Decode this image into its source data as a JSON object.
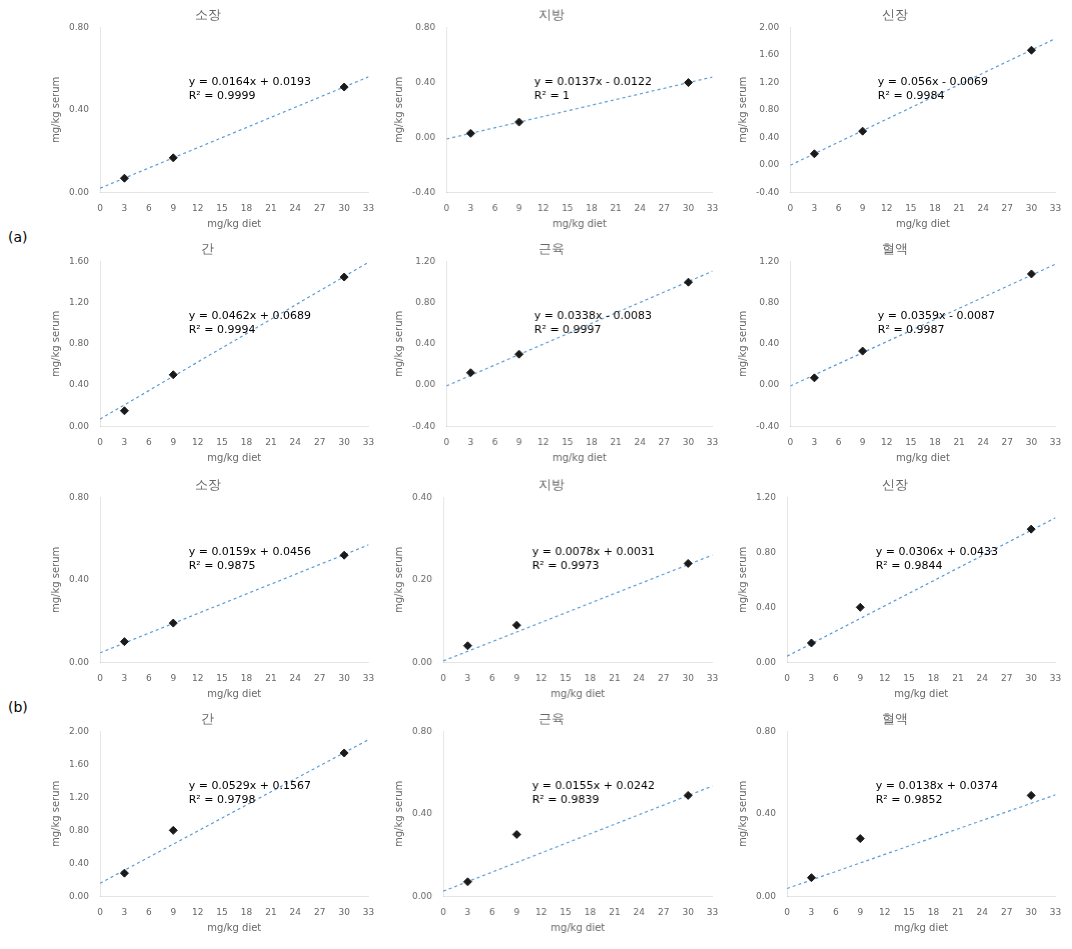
{
  "chart_data": [
    {
      "group": "(a)",
      "type": "scatter",
      "title": "소장",
      "x_label": "mg/kg diet",
      "y_label": "mg/kg serum",
      "grid": false,
      "xlim": [
        0,
        33
      ],
      "xticks": [
        0,
        3,
        6,
        9,
        12,
        15,
        18,
        21,
        24,
        27,
        30,
        33
      ],
      "ylim": [
        0,
        0.8
      ],
      "yticks": [
        {
          "value": 0,
          "label": "0.00"
        },
        {
          "value": 0.4,
          "label": "0.40"
        },
        {
          "value": 0.8,
          "label": "0.80"
        }
      ],
      "annotations": [
        "y = 0.0164x + 0.0193",
        "R² = 0.9999"
      ],
      "series": [
        {
          "type": "line",
          "color": "#5b9bd5",
          "line_style": "dashed",
          "x": [
            0,
            33
          ],
          "values": [
            0.0193,
            0.5605
          ]
        },
        {
          "type": "scatter",
          "color": "#1a1a1a",
          "marker": "diamond",
          "x": [
            3,
            9,
            30
          ],
          "values": [
            0.068,
            0.167,
            0.511
          ]
        }
      ]
    },
    {
      "group": "(a)",
      "type": "scatter",
      "title": "지방",
      "x_label": "mg/kg diet",
      "y_label": "mg/kg serum",
      "grid": false,
      "xlim": [
        0,
        33
      ],
      "xticks": [
        0,
        3,
        6,
        9,
        12,
        15,
        18,
        21,
        24,
        27,
        30,
        33
      ],
      "ylim": [
        -0.4,
        0.8
      ],
      "yticks": [
        {
          "value": -0.4,
          "label": "-0.40"
        },
        {
          "value": 0,
          "label": "0.00"
        },
        {
          "value": 0.4,
          "label": "0.40"
        },
        {
          "value": 0.8,
          "label": "0.80"
        }
      ],
      "annotations": [
        "y = 0.0137x - 0.0122",
        "R² = 1"
      ],
      "series": [
        {
          "type": "line",
          "color": "#5b9bd5",
          "line_style": "dashed",
          "x": [
            0,
            33
          ],
          "values": [
            -0.0122,
            0.4399
          ]
        },
        {
          "type": "scatter",
          "color": "#1a1a1a",
          "marker": "diamond",
          "x": [
            3,
            9,
            30
          ],
          "values": [
            0.029,
            0.111,
            0.399
          ]
        }
      ]
    },
    {
      "group": "(a)",
      "type": "scatter",
      "title": "신장",
      "x_label": "mg/kg diet",
      "y_label": "mg/kg serum",
      "grid": false,
      "xlim": [
        0,
        33
      ],
      "xticks": [
        0,
        3,
        6,
        9,
        12,
        15,
        18,
        21,
        24,
        27,
        30,
        33
      ],
      "ylim": [
        -0.4,
        2.0
      ],
      "yticks": [
        {
          "value": -0.4,
          "label": "-0.40"
        },
        {
          "value": 0,
          "label": "0.00"
        },
        {
          "value": 0.4,
          "label": "0.40"
        },
        {
          "value": 0.8,
          "label": "0.80"
        },
        {
          "value": 1.2,
          "label": "1.20"
        },
        {
          "value": 1.6,
          "label": "1.60"
        },
        {
          "value": 2.0,
          "label": "2.00"
        }
      ],
      "annotations": [
        "y = 0.056x - 0.0069",
        "R² = 0.9984"
      ],
      "series": [
        {
          "type": "line",
          "color": "#5b9bd5",
          "line_style": "dashed",
          "x": [
            0,
            33
          ],
          "values": [
            -0.0069,
            1.8411
          ]
        },
        {
          "type": "scatter",
          "color": "#1a1a1a",
          "marker": "diamond",
          "x": [
            3,
            9,
            30
          ],
          "values": [
            0.16,
            0.49,
            1.67
          ]
        }
      ]
    },
    {
      "group": "(a)",
      "type": "scatter",
      "title": "간",
      "x_label": "mg/kg diet",
      "y_label": "mg/kg serum",
      "grid": false,
      "xlim": [
        0,
        33
      ],
      "xticks": [
        0,
        3,
        6,
        9,
        12,
        15,
        18,
        21,
        24,
        27,
        30,
        33
      ],
      "ylim": [
        0,
        1.6
      ],
      "yticks": [
        {
          "value": 0,
          "label": "0.00"
        },
        {
          "value": 0.4,
          "label": "0.40"
        },
        {
          "value": 0.8,
          "label": "0.80"
        },
        {
          "value": 1.2,
          "label": "1.20"
        },
        {
          "value": 1.6,
          "label": "1.60"
        }
      ],
      "annotations": [
        "y = 0.0462x + 0.0689",
        "R² = 0.9994"
      ],
      "series": [
        {
          "type": "line",
          "color": "#5b9bd5",
          "line_style": "dashed",
          "x": [
            0,
            33
          ],
          "values": [
            0.0689,
            1.5935
          ]
        },
        {
          "type": "scatter",
          "color": "#1a1a1a",
          "marker": "diamond",
          "x": [
            3,
            9,
            30
          ],
          "values": [
            0.15,
            0.5,
            1.45
          ]
        }
      ]
    },
    {
      "group": "(a)",
      "type": "scatter",
      "title": "근육",
      "x_label": "mg/kg diet",
      "y_label": "mg/kg serum",
      "grid": false,
      "xlim": [
        0,
        33
      ],
      "xticks": [
        0,
        3,
        6,
        9,
        12,
        15,
        18,
        21,
        24,
        27,
        30,
        33
      ],
      "ylim": [
        -0.4,
        1.2
      ],
      "yticks": [
        {
          "value": -0.4,
          "label": "-0.40"
        },
        {
          "value": 0,
          "label": "0.00"
        },
        {
          "value": 0.4,
          "label": "0.40"
        },
        {
          "value": 0.8,
          "label": "0.80"
        },
        {
          "value": 1.2,
          "label": "1.20"
        }
      ],
      "annotations": [
        "y = 0.0338x - 0.0083",
        "R² = 0.9997"
      ],
      "series": [
        {
          "type": "line",
          "color": "#5b9bd5",
          "line_style": "dashed",
          "x": [
            0,
            33
          ],
          "values": [
            -0.0083,
            1.1071
          ]
        },
        {
          "type": "scatter",
          "color": "#1a1a1a",
          "marker": "diamond",
          "x": [
            3,
            9,
            30
          ],
          "values": [
            0.12,
            0.3,
            1.0
          ]
        }
      ]
    },
    {
      "group": "(a)",
      "type": "scatter",
      "title": "혈액",
      "x_label": "mg/kg diet",
      "y_label": "mg/kg serum",
      "grid": false,
      "xlim": [
        0,
        33
      ],
      "xticks": [
        0,
        3,
        6,
        9,
        12,
        15,
        18,
        21,
        24,
        27,
        30,
        33
      ],
      "ylim": [
        -0.4,
        1.2
      ],
      "yticks": [
        {
          "value": -0.4,
          "label": "-0.40"
        },
        {
          "value": 0,
          "label": "0.00"
        },
        {
          "value": 0.4,
          "label": "0.40"
        },
        {
          "value": 0.8,
          "label": "0.80"
        },
        {
          "value": 1.2,
          "label": "1.20"
        }
      ],
      "annotations": [
        "y = 0.0359x - 0.0087",
        "R² = 0.9987"
      ],
      "series": [
        {
          "type": "line",
          "color": "#5b9bd5",
          "line_style": "dashed",
          "x": [
            0,
            33
          ],
          "values": [
            -0.0087,
            1.176
          ]
        },
        {
          "type": "scatter",
          "color": "#1a1a1a",
          "marker": "diamond",
          "x": [
            3,
            9,
            30
          ],
          "values": [
            0.07,
            0.33,
            1.08
          ]
        }
      ]
    },
    {
      "group": "(b)",
      "type": "scatter",
      "title": "소장",
      "x_label": "mg/kg diet",
      "y_label": "mg/kg serum",
      "grid": false,
      "xlim": [
        0,
        33
      ],
      "xticks": [
        0,
        3,
        6,
        9,
        12,
        15,
        18,
        21,
        24,
        27,
        30,
        33
      ],
      "ylim": [
        0,
        0.8
      ],
      "yticks": [
        {
          "value": 0,
          "label": "0.00"
        },
        {
          "value": 0.4,
          "label": "0.40"
        },
        {
          "value": 0.8,
          "label": "0.80"
        }
      ],
      "annotations": [
        "y = 0.0159x + 0.0456",
        "R² = 0.9875"
      ],
      "series": [
        {
          "type": "line",
          "color": "#5b9bd5",
          "line_style": "dashed",
          "x": [
            0,
            33
          ],
          "values": [
            0.0456,
            0.5703
          ]
        },
        {
          "type": "scatter",
          "color": "#1a1a1a",
          "marker": "diamond",
          "x": [
            3,
            9,
            30
          ],
          "values": [
            0.1,
            0.19,
            0.52
          ]
        }
      ]
    },
    {
      "group": "(b)",
      "type": "scatter",
      "title": "지방",
      "x_label": "mg/kg diet",
      "y_label": "mg/kg serum",
      "grid": false,
      "xlim": [
        0,
        33
      ],
      "xticks": [
        0,
        3,
        6,
        9,
        12,
        15,
        18,
        21,
        24,
        27,
        30,
        33
      ],
      "ylim": [
        0,
        0.4
      ],
      "yticks": [
        {
          "value": 0,
          "label": "0.00"
        },
        {
          "value": 0.2,
          "label": "0.20"
        },
        {
          "value": 0.4,
          "label": "0.40"
        }
      ],
      "annotations": [
        "y = 0.0078x + 0.0031",
        "R² = 0.9973"
      ],
      "series": [
        {
          "type": "line",
          "color": "#5b9bd5",
          "line_style": "dashed",
          "x": [
            0,
            33
          ],
          "values": [
            0.0031,
            0.2605
          ]
        },
        {
          "type": "scatter",
          "color": "#1a1a1a",
          "marker": "diamond",
          "x": [
            3,
            9,
            30
          ],
          "values": [
            0.04,
            0.09,
            0.24
          ]
        }
      ]
    },
    {
      "group": "(b)",
      "type": "scatter",
      "title": "신장",
      "x_label": "mg/kg diet",
      "y_label": "mg/kg serum",
      "grid": false,
      "xlim": [
        0,
        33
      ],
      "xticks": [
        0,
        3,
        6,
        9,
        12,
        15,
        18,
        21,
        24,
        27,
        30,
        33
      ],
      "ylim": [
        0,
        1.2
      ],
      "yticks": [
        {
          "value": 0,
          "label": "0.00"
        },
        {
          "value": 0.4,
          "label": "0.40"
        },
        {
          "value": 0.8,
          "label": "0.80"
        },
        {
          "value": 1.2,
          "label": "1.20"
        }
      ],
      "annotations": [
        "y = 0.0306x + 0.0433",
        "R² = 0.9844"
      ],
      "series": [
        {
          "type": "line",
          "color": "#5b9bd5",
          "line_style": "dashed",
          "x": [
            0,
            33
          ],
          "values": [
            0.0433,
            1.0531
          ]
        },
        {
          "type": "scatter",
          "color": "#1a1a1a",
          "marker": "diamond",
          "x": [
            3,
            9,
            30
          ],
          "values": [
            0.14,
            0.4,
            0.97
          ]
        }
      ]
    },
    {
      "group": "(b)",
      "type": "scatter",
      "title": "간",
      "x_label": "mg/kg diet",
      "y_label": "mg/kg serum",
      "grid": false,
      "xlim": [
        0,
        33
      ],
      "xticks": [
        0,
        3,
        6,
        9,
        12,
        15,
        18,
        21,
        24,
        27,
        30,
        33
      ],
      "ylim": [
        0,
        2.0
      ],
      "yticks": [
        {
          "value": 0,
          "label": "0.00"
        },
        {
          "value": 0.4,
          "label": "0.40"
        },
        {
          "value": 0.8,
          "label": "0.80"
        },
        {
          "value": 1.2,
          "label": "1.20"
        },
        {
          "value": 1.6,
          "label": "1.60"
        },
        {
          "value": 2.0,
          "label": "2.00"
        }
      ],
      "annotations": [
        "y = 0.0529x + 0.1567",
        "R² = 0.9798"
      ],
      "series": [
        {
          "type": "line",
          "color": "#5b9bd5",
          "line_style": "dashed",
          "x": [
            0,
            33
          ],
          "values": [
            0.1567,
            1.9024
          ]
        },
        {
          "type": "scatter",
          "color": "#1a1a1a",
          "marker": "diamond",
          "x": [
            3,
            9,
            30
          ],
          "values": [
            0.28,
            0.8,
            1.74
          ]
        }
      ]
    },
    {
      "group": "(b)",
      "type": "scatter",
      "title": "근육",
      "x_label": "mg/kg diet",
      "y_label": "mg/kg serum",
      "grid": false,
      "xlim": [
        0,
        33
      ],
      "xticks": [
        0,
        3,
        6,
        9,
        12,
        15,
        18,
        21,
        24,
        27,
        30,
        33
      ],
      "ylim": [
        0,
        0.8
      ],
      "yticks": [
        {
          "value": 0,
          "label": "0.00"
        },
        {
          "value": 0.4,
          "label": "0.40"
        },
        {
          "value": 0.8,
          "label": "0.80"
        }
      ],
      "annotations": [
        "y = 0.0155x + 0.0242",
        "R² = 0.9839"
      ],
      "series": [
        {
          "type": "line",
          "color": "#5b9bd5",
          "line_style": "dashed",
          "x": [
            0,
            33
          ],
          "values": [
            0.0242,
            0.5357
          ]
        },
        {
          "type": "scatter",
          "color": "#1a1a1a",
          "marker": "diamond",
          "x": [
            3,
            9,
            30
          ],
          "values": [
            0.07,
            0.3,
            0.49
          ]
        }
      ]
    },
    {
      "group": "(b)",
      "type": "scatter",
      "title": "혈액",
      "x_label": "mg/kg diet",
      "y_label": "mg/kg serum",
      "grid": false,
      "xlim": [
        0,
        33
      ],
      "xticks": [
        0,
        3,
        6,
        9,
        12,
        15,
        18,
        21,
        24,
        27,
        30,
        33
      ],
      "ylim": [
        0,
        0.8
      ],
      "yticks": [
        {
          "value": 0,
          "label": "0.00"
        },
        {
          "value": 0.4,
          "label": "0.40"
        },
        {
          "value": 0.8,
          "label": "0.80"
        }
      ],
      "annotations": [
        "y = 0.0138x + 0.0374",
        "R² = 0.9852"
      ],
      "series": [
        {
          "type": "line",
          "color": "#5b9bd5",
          "line_style": "dashed",
          "x": [
            0,
            33
          ],
          "values": [
            0.0374,
            0.4928
          ]
        },
        {
          "type": "scatter",
          "color": "#1a1a1a",
          "marker": "diamond",
          "x": [
            3,
            9,
            30
          ],
          "values": [
            0.09,
            0.28,
            0.49
          ]
        }
      ]
    }
  ]
}
